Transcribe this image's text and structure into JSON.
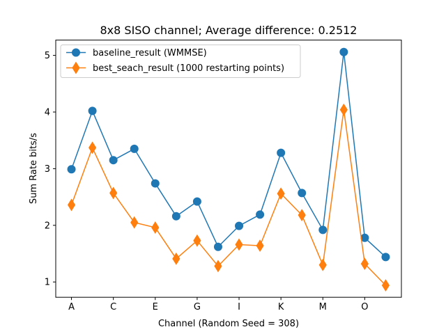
{
  "chart_data": {
    "type": "line",
    "title": "8x8 SISO channel; Average difference: 0.2512",
    "xlabel": "Channel (Random Seed = 308)",
    "ylabel": "Sum Rate  bits/s",
    "x_tick_labels": [
      "A",
      "C",
      "E",
      "G",
      "I",
      "K",
      "M",
      "O"
    ],
    "x_tick_positions": [
      0,
      2,
      4,
      6,
      8,
      10,
      12,
      14
    ],
    "yticks": [
      1,
      2,
      3,
      4,
      5
    ],
    "xlim": [
      -0.75,
      15.75
    ],
    "ylim": [
      0.73,
      5.27
    ],
    "x": [
      0,
      1,
      2,
      3,
      4,
      5,
      6,
      7,
      8,
      9,
      10,
      11,
      12,
      13,
      14,
      15
    ],
    "series": [
      {
        "name": "baseline_result (WMMSE)",
        "color": "#1f77b4",
        "marker": "circle",
        "values": [
          2.99,
          4.02,
          3.15,
          3.35,
          2.74,
          2.16,
          2.42,
          1.62,
          1.99,
          2.19,
          3.28,
          2.57,
          1.92,
          5.06,
          1.78,
          1.44
        ]
      },
      {
        "name": "best_seach_result (1000 restarting points)",
        "color": "#ff7f0e",
        "marker": "diamond",
        "values": [
          2.36,
          3.37,
          2.57,
          2.05,
          1.96,
          1.41,
          1.73,
          1.28,
          1.66,
          1.64,
          2.56,
          2.18,
          1.3,
          4.04,
          1.32,
          0.94
        ]
      }
    ],
    "legend_position": "upper-left",
    "grid": false
  }
}
